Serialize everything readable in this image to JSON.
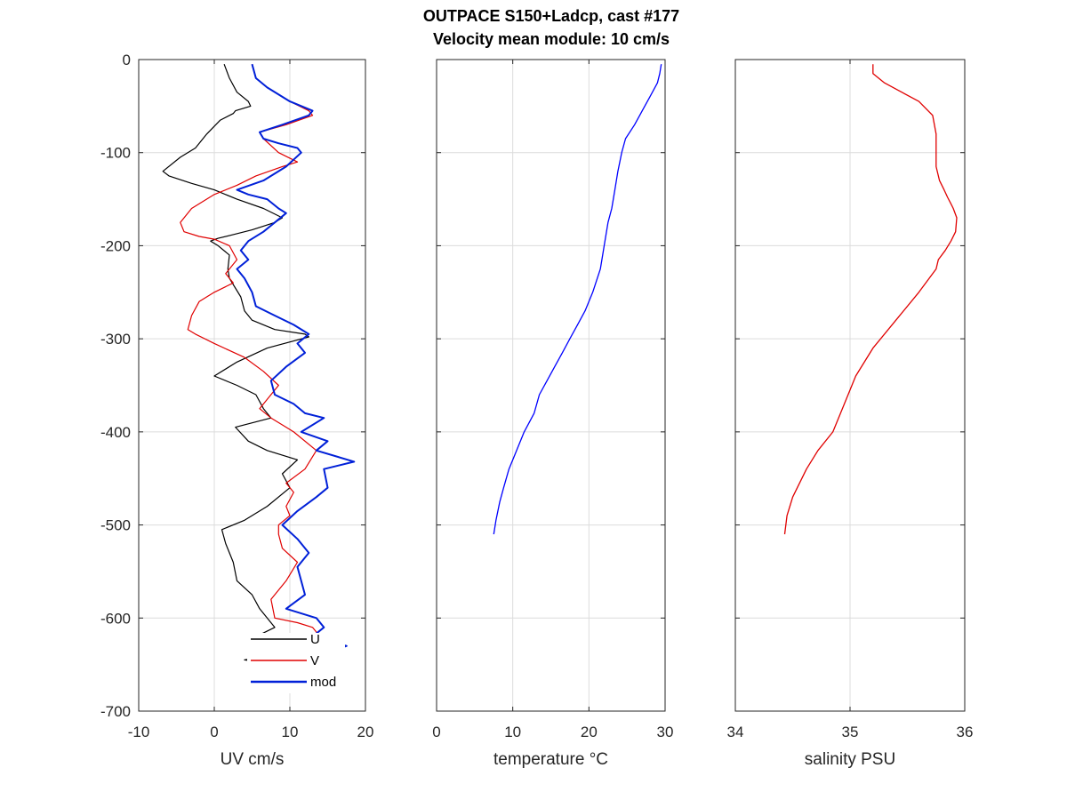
{
  "title_line1": "OUTPACE S150+Ladcp, cast #177",
  "title_line2": "Velocity mean module:  10 cm/s",
  "chart_data": [
    {
      "type": "line",
      "xlabel": "UV cm/s",
      "ylabel": "",
      "xlim": [
        -10,
        20
      ],
      "ylim": [
        -700,
        0
      ],
      "xticks": [
        "-10",
        "0",
        "10",
        "20"
      ],
      "yticks": [
        "0",
        "-100",
        "-200",
        "-300",
        "-400",
        "-500",
        "-600",
        "-700"
      ],
      "grid": true,
      "legend": {
        "placement": "bottom-right-inside",
        "entries": [
          "U",
          "V",
          "mod"
        ]
      },
      "series": [
        {
          "name": "U",
          "color": "#000000",
          "x": [
            1.3,
            2.0,
            3.0,
            4.5,
            4.8,
            2.8,
            2.5,
            0.8,
            -1.0,
            -2.5,
            -4.5,
            -6.8,
            -6.0,
            -3.0,
            0,
            3.0,
            6.5,
            9.0,
            8.0,
            5.0,
            2.5,
            0.5,
            -0.5,
            0.5,
            2.0,
            1.8,
            2.0,
            3.5,
            4.0,
            5.0,
            8.0,
            12.0,
            12.5,
            7.0,
            3.0,
            0,
            3.0,
            5.5,
            6.5,
            7.5,
            2.8,
            4.5,
            7.0,
            11.0,
            9.0,
            10.0,
            7.0,
            4.0,
            1.0,
            1.5,
            2.5,
            3.0,
            5.0,
            6.0,
            7.0,
            8.0,
            5.0,
            12.0,
            6.5,
            8.0,
            4.0,
            9.0
          ],
          "y": [
            -5,
            -20,
            -35,
            -45,
            -50,
            -55,
            -58,
            -65,
            -80,
            -95,
            -105,
            -120,
            -125,
            -133,
            -140,
            -150,
            -160,
            -170,
            -175,
            -183,
            -188,
            -192,
            -195,
            -200,
            -210,
            -225,
            -235,
            -255,
            -270,
            -280,
            -290,
            -295,
            -298,
            -310,
            -325,
            -340,
            -350,
            -360,
            -375,
            -385,
            -395,
            -410,
            -420,
            -430,
            -445,
            -460,
            -480,
            -495,
            -505,
            -520,
            -540,
            -560,
            -575,
            -590,
            -600,
            -610,
            -622,
            -622,
            -635,
            -640,
            -645,
            -650
          ]
        },
        {
          "name": "V",
          "color": "#e00000",
          "x": [
            5.0,
            5.5,
            7.0,
            10.0,
            12.5,
            13.0,
            9.5,
            6.0,
            6.5,
            8.5,
            11.0,
            9.0,
            5.5,
            3.0,
            0,
            -3.0,
            -4.5,
            -4.0,
            -2.0,
            0,
            2.0,
            3.0,
            1.5,
            2.5,
            0,
            -2.0,
            -3.0,
            -3.5,
            -2.5,
            0,
            4.0,
            6.5,
            8.5,
            7.0,
            6.0,
            7.5,
            9.5,
            10.5,
            13.5,
            12.0,
            9.5,
            10.5,
            9.5,
            10.0,
            8.5,
            8.5,
            9.0,
            11.0,
            9.5,
            7.5,
            8.0,
            11.0,
            13.0,
            14.0,
            13.5,
            5.0
          ],
          "y": [
            -5,
            -20,
            -30,
            -45,
            -55,
            -60,
            -70,
            -78,
            -85,
            -100,
            -110,
            -115,
            -125,
            -135,
            -145,
            -160,
            -175,
            -185,
            -190,
            -193,
            -200,
            -215,
            -230,
            -240,
            -250,
            -260,
            -275,
            -290,
            -295,
            -305,
            -320,
            -335,
            -350,
            -365,
            -375,
            -385,
            -395,
            -400,
            -420,
            -440,
            -455,
            -465,
            -480,
            -490,
            -500,
            -510,
            -525,
            -540,
            -560,
            -580,
            -600,
            -605,
            -610,
            -620,
            -630,
            -640
          ]
        },
        {
          "name": "mod",
          "color": "#0020d8",
          "x": [
            5.0,
            5.5,
            7.0,
            10.0,
            13.0,
            12.5,
            9.0,
            6.0,
            6.5,
            8.5,
            11.0,
            11.5,
            9.5,
            6.5,
            3.0,
            4.5,
            7.0,
            8.5,
            9.5,
            8.0,
            6.5,
            4.5,
            3.5,
            4.5,
            3.0,
            4.0,
            5.0,
            5.5,
            8.0,
            10.5,
            12.5,
            11.0,
            12.0,
            9.5,
            7.5,
            8.0,
            10.5,
            12.0,
            14.5,
            11.5,
            15.0,
            13.5,
            18.5,
            14.5,
            15.0,
            13.5,
            11.0,
            9.0,
            11.0,
            12.5,
            11.0,
            12.0,
            9.5,
            13.5,
            14.5,
            13.0,
            17.5,
            14.0,
            13.0
          ],
          "y": [
            -5,
            -20,
            -30,
            -45,
            -55,
            -60,
            -70,
            -78,
            -85,
            -90,
            -95,
            -100,
            -115,
            -130,
            -140,
            -145,
            -150,
            -160,
            -165,
            -175,
            -185,
            -195,
            -205,
            -215,
            -225,
            -235,
            -250,
            -265,
            -275,
            -285,
            -295,
            -305,
            -315,
            -330,
            -345,
            -360,
            -370,
            -380,
            -385,
            -400,
            -410,
            -420,
            -432,
            -440,
            -460,
            -470,
            -485,
            -500,
            -515,
            -530,
            -545,
            -575,
            -590,
            -600,
            -610,
            -620,
            -630,
            -640,
            -650
          ]
        }
      ]
    },
    {
      "type": "line",
      "xlabel": "temperature °C",
      "ylabel": "",
      "xlim": [
        0,
        30
      ],
      "ylim": [
        -700,
        0
      ],
      "xticks": [
        "0",
        "10",
        "20",
        "30"
      ],
      "grid": true,
      "series": [
        {
          "name": "",
          "color": "#0000ff",
          "x": [
            29.5,
            29.3,
            29.0,
            28.0,
            27.0,
            26.0,
            24.8,
            24.3,
            23.8,
            23.4,
            23.0,
            22.5,
            22.0,
            21.5,
            20.5,
            19.5,
            18.5,
            17.5,
            16.5,
            15.5,
            14.5,
            13.5,
            12.8,
            11.5,
            10.5,
            9.5,
            8.8,
            8.3,
            7.8,
            7.5
          ],
          "y": [
            -5,
            -15,
            -25,
            -40,
            -55,
            -70,
            -85,
            -100,
            -120,
            -140,
            -160,
            -175,
            -200,
            -225,
            -250,
            -270,
            -285,
            -300,
            -315,
            -330,
            -345,
            -360,
            -380,
            -400,
            -420,
            -440,
            -460,
            -475,
            -495,
            -510
          ]
        }
      ]
    },
    {
      "type": "line",
      "xlabel": "salinity PSU",
      "ylabel": "",
      "xlim": [
        34,
        36
      ],
      "ylim": [
        -700,
        0
      ],
      "xticks": [
        "34",
        "35",
        "36"
      ],
      "grid": true,
      "series": [
        {
          "name": "",
          "color": "#e00000",
          "x": [
            35.2,
            35.2,
            35.3,
            35.45,
            35.6,
            35.72,
            35.75,
            35.75,
            35.75,
            35.78,
            35.82,
            35.85,
            35.88,
            35.9,
            35.93,
            35.92,
            35.88,
            35.83,
            35.77,
            35.75,
            35.6,
            35.4,
            35.2,
            35.05,
            34.95,
            34.85,
            34.72,
            34.62,
            34.5,
            34.45,
            34.43
          ],
          "y": [
            -5,
            -15,
            -25,
            -35,
            -45,
            -60,
            -80,
            -95,
            -115,
            -130,
            -140,
            -148,
            -155,
            -160,
            -170,
            -185,
            -195,
            -205,
            -215,
            -225,
            -250,
            -280,
            -310,
            -340,
            -370,
            -400,
            -420,
            -440,
            -470,
            -490,
            -510
          ]
        }
      ]
    }
  ]
}
